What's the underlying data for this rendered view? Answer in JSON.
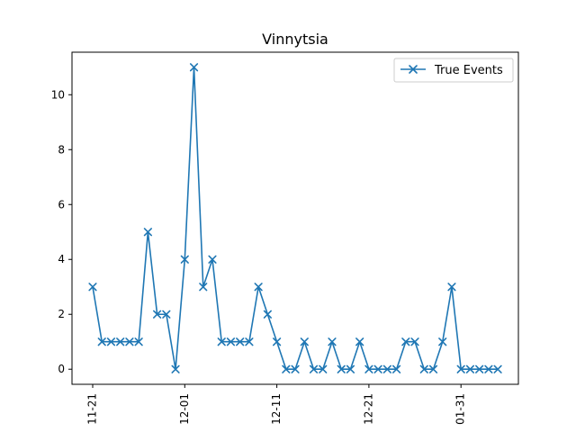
{
  "chart_data": {
    "type": "line",
    "title": "Vinnytsia",
    "xlabel": "",
    "ylabel": "",
    "x_tick_labels": [
      "11-21",
      "12-01",
      "12-11",
      "12-21",
      "01-31"
    ],
    "x_tick_indices": [
      0,
      10,
      20,
      30,
      40
    ],
    "ylim": [
      -0.55,
      11.55
    ],
    "y_ticks": [
      0,
      2,
      4,
      6,
      8,
      10
    ],
    "grid": false,
    "legend_position": "top-right",
    "series": [
      {
        "name": "True Events",
        "color": "#1f77b4",
        "marker": "x",
        "values": [
          3,
          1,
          1,
          1,
          1,
          1,
          5,
          2,
          2,
          0,
          4,
          11,
          3,
          4,
          1,
          1,
          1,
          1,
          3,
          2,
          1,
          0,
          0,
          1,
          0,
          0,
          1,
          0,
          0,
          1,
          0,
          0,
          0,
          0,
          1,
          1,
          0,
          0,
          1,
          3,
          0,
          0,
          0,
          0,
          0
        ]
      }
    ]
  }
}
